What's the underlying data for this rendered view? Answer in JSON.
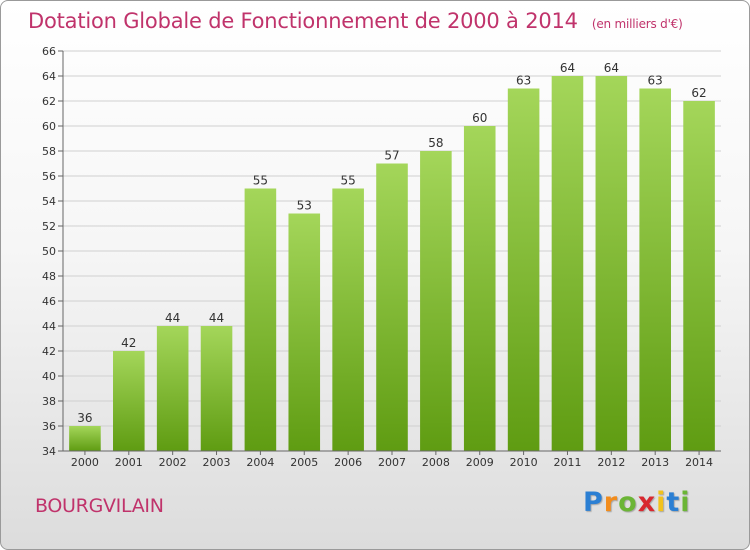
{
  "title": "Dotation Globale de Fonctionnement de 2000 à 2014",
  "unit": "(en milliers d'€)",
  "commune": "BOURGVILAIN",
  "logo": {
    "letters": [
      "P",
      "r",
      "o",
      "x",
      "i",
      "t",
      "i"
    ],
    "colors": [
      "#2b7fd3",
      "#f28c1c",
      "#6bb536",
      "#d8282f",
      "#f2c21c",
      "#2b7fd3",
      "#6bb536"
    ]
  },
  "colors": {
    "title": "#c0336b",
    "bar_top": "#a4d65a",
    "bar_bottom": "#5f9c12",
    "grid": "#d0d0d0"
  },
  "chart_data": {
    "type": "bar",
    "title": "Dotation Globale de Fonctionnement de 2000 à 2014",
    "categories": [
      "2000",
      "2001",
      "2002",
      "2003",
      "2004",
      "2005",
      "2006",
      "2007",
      "2008",
      "2009",
      "2010",
      "2011",
      "2012",
      "2013",
      "2014"
    ],
    "values": [
      36,
      42,
      44,
      44,
      55,
      53,
      55,
      57,
      58,
      60,
      63,
      64,
      64,
      63,
      62
    ],
    "ylim": [
      34,
      66
    ],
    "yticks": [
      34,
      36,
      38,
      40,
      42,
      44,
      46,
      48,
      50,
      52,
      54,
      56,
      58,
      60,
      62,
      64,
      66
    ],
    "grid": true,
    "xlabel": "",
    "ylabel": ""
  }
}
